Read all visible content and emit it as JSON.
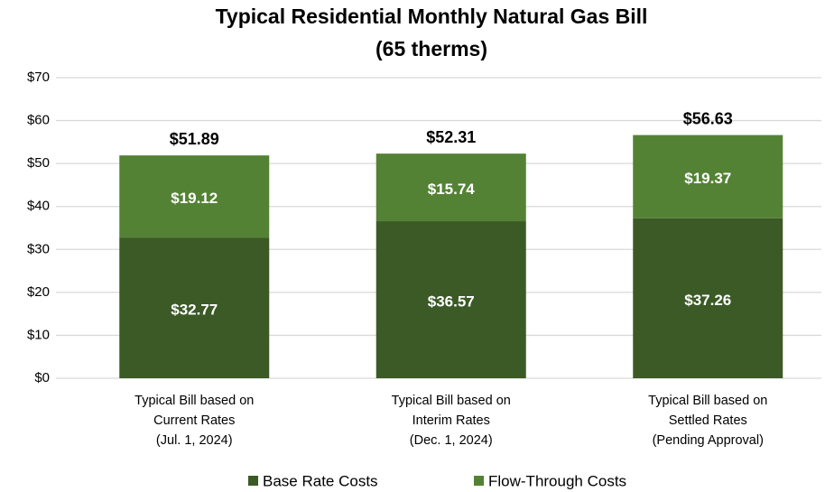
{
  "chart_data": {
    "type": "bar",
    "stacked": true,
    "title": [
      "Typical Residential Monthly Natural Gas Bill",
      "(65 therms)"
    ],
    "categories": [
      [
        "Typical Bill based on",
        "Current Rates",
        "(Jul. 1, 2024)"
      ],
      [
        "Typical Bill based on",
        "Interim Rates",
        "(Dec. 1, 2024)"
      ],
      [
        "Typical Bill based on",
        "Settled Rates",
        "(Pending Approval)"
      ]
    ],
    "series": [
      {
        "name": "Base Rate Costs",
        "color": "#3b5a26",
        "values": [
          32.77,
          36.57,
          37.26
        ],
        "value_labels": [
          "$32.77",
          "$36.57",
          "$37.26"
        ]
      },
      {
        "name": "Flow-Through Costs",
        "color": "#548235",
        "values": [
          19.12,
          15.74,
          19.37
        ],
        "value_labels": [
          "$19.12",
          "$15.74",
          "$19.37"
        ]
      }
    ],
    "totals": [
      51.89,
      52.31,
      56.63
    ],
    "total_labels": [
      "$51.89",
      "$52.31",
      "$56.63"
    ],
    "ylim": [
      0,
      70
    ],
    "yticks": [
      {
        "value": 0,
        "label": "$0"
      },
      {
        "value": 10,
        "label": "$10"
      },
      {
        "value": 20,
        "label": "$20"
      },
      {
        "value": 30,
        "label": "$30"
      },
      {
        "value": 40,
        "label": "$40"
      },
      {
        "value": 50,
        "label": "$50"
      },
      {
        "value": 60,
        "label": "$60"
      },
      {
        "value": 70,
        "label": "$70"
      }
    ],
    "grid": true,
    "legend": "bottom"
  }
}
